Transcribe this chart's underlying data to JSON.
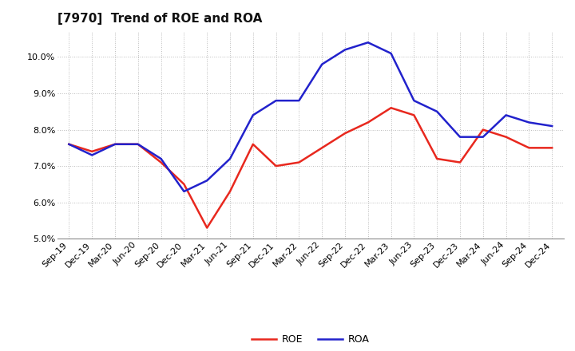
{
  "title": "[7970]  Trend of ROE and ROA",
  "labels": [
    "Sep-19",
    "Dec-19",
    "Mar-20",
    "Jun-20",
    "Sep-20",
    "Dec-20",
    "Mar-21",
    "Jun-21",
    "Sep-21",
    "Dec-21",
    "Mar-22",
    "Jun-22",
    "Sep-22",
    "Dec-22",
    "Mar-23",
    "Jun-23",
    "Sep-23",
    "Dec-23",
    "Mar-24",
    "Jun-24",
    "Sep-24",
    "Dec-24"
  ],
  "roe": [
    7.6,
    7.4,
    7.6,
    7.6,
    7.1,
    6.5,
    5.3,
    6.3,
    7.6,
    7.0,
    7.1,
    7.5,
    7.9,
    8.2,
    8.6,
    8.4,
    7.2,
    7.1,
    8.0,
    7.8,
    7.5,
    7.5
  ],
  "roa": [
    7.6,
    7.3,
    7.6,
    7.6,
    7.2,
    6.3,
    6.6,
    7.2,
    8.4,
    8.8,
    8.8,
    9.8,
    10.2,
    10.4,
    10.1,
    8.8,
    8.5,
    7.8,
    7.8,
    8.4,
    8.2,
    8.1
  ],
  "roe_color": "#e8281e",
  "roa_color": "#2222cc",
  "ylim_min": 5.0,
  "ylim_max": 10.7,
  "yticks": [
    5.0,
    6.0,
    7.0,
    8.0,
    9.0,
    10.0
  ],
  "background_color": "#ffffff",
  "grid_color": "#bbbbbb",
  "title_fontsize": 11,
  "axis_fontsize": 8,
  "legend_fontsize": 9,
  "line_width": 1.8
}
